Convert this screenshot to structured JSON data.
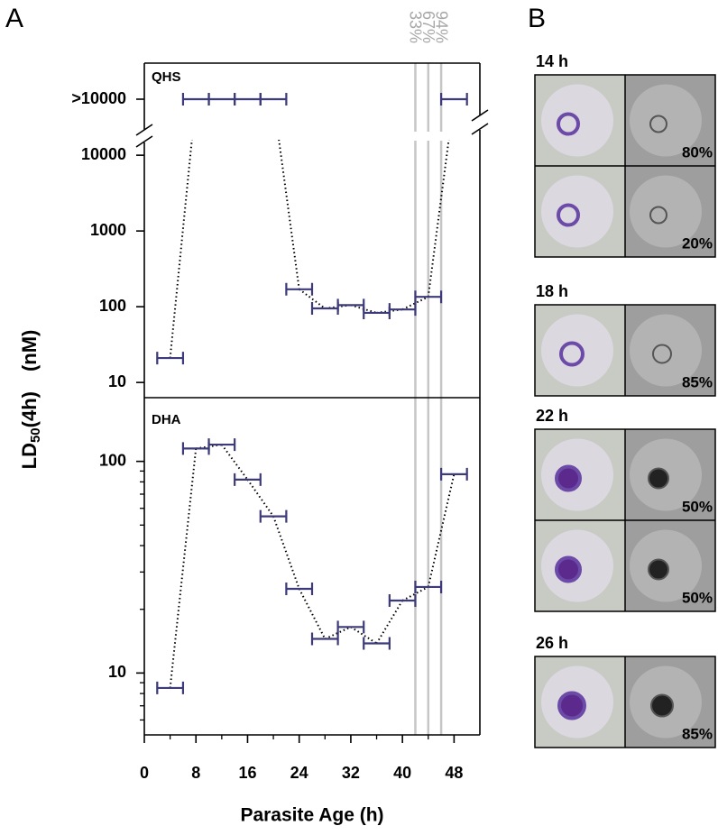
{
  "figure": {
    "panel_label": "A",
    "y_label": {
      "main": "LD",
      "sub": "50",
      "paren": "(4h)",
      "unit": "(nM)"
    },
    "markers": [
      {
        "x": 42,
        "label": "33%"
      },
      {
        "x": 44,
        "label": "67%"
      },
      {
        "x": 46,
        "label": "94%"
      }
    ],
    "marker_color": "#c6c6c6"
  },
  "chart_data": [
    {
      "type": "errorbar",
      "title": "QHS",
      "xlim": [
        0,
        52
      ],
      "xerr": 2,
      "x": [
        4,
        8,
        12,
        16,
        20,
        24,
        28,
        32,
        36,
        40,
        44,
        48
      ],
      "log_y": true,
      "ylim": [
        6.3,
        16000
      ],
      "yticks": [
        10,
        100,
        1000,
        10000
      ],
      "break_ticks": [
        {
          "value": 10000,
          "label": ">10000"
        }
      ],
      "series": [
        {
          "color": "#3c3a78",
          "values": [
            21,
            null,
            null,
            null,
            null,
            170,
            95,
            105,
            83,
            92,
            135,
            null
          ]
        },
        {
          "color": "#3c3a78",
          "axis": "break",
          "values": [
            null,
            10000,
            10000,
            10000,
            10000,
            null,
            null,
            null,
            null,
            null,
            null,
            10000
          ]
        }
      ],
      "line_style": "dotted"
    },
    {
      "type": "errorbar",
      "title": "DHA",
      "xlabel": "Parasite Age (h)",
      "xlim": [
        0,
        52
      ],
      "xerr": 2,
      "x": [
        4,
        8,
        12,
        16,
        20,
        24,
        28,
        32,
        36,
        40,
        44,
        48
      ],
      "xticks": [
        0,
        8,
        16,
        24,
        32,
        40,
        48
      ],
      "minor_xticks": [
        4,
        12,
        20,
        28,
        36,
        44
      ],
      "log_y": true,
      "ylim": [
        5.1,
        200
      ],
      "yticks": [
        10,
        100
      ],
      "minor_yticks": [
        6,
        7,
        8,
        9,
        20,
        30,
        40,
        50,
        60,
        70,
        80,
        90
      ],
      "series": [
        {
          "color": "#3c3a78",
          "values": [
            8.5,
            115,
            120,
            82,
            55,
            25,
            14.5,
            16.5,
            13.8,
            22,
            25.5,
            87
          ]
        }
      ],
      "line_style": "dotted"
    }
  ],
  "panel_b": {
    "label": "B",
    "groups": [
      {
        "time": "14 h",
        "rows": [
          {
            "percent": "80%"
          },
          {
            "percent": "20%"
          }
        ]
      },
      {
        "time": "18 h",
        "rows": [
          {
            "percent": "85%"
          }
        ]
      },
      {
        "time": "22 h",
        "rows": [
          {
            "percent": "50%"
          },
          {
            "percent": "50%"
          }
        ]
      },
      {
        "time": "26 h",
        "rows": [
          {
            "percent": "85%"
          }
        ]
      }
    ]
  }
}
